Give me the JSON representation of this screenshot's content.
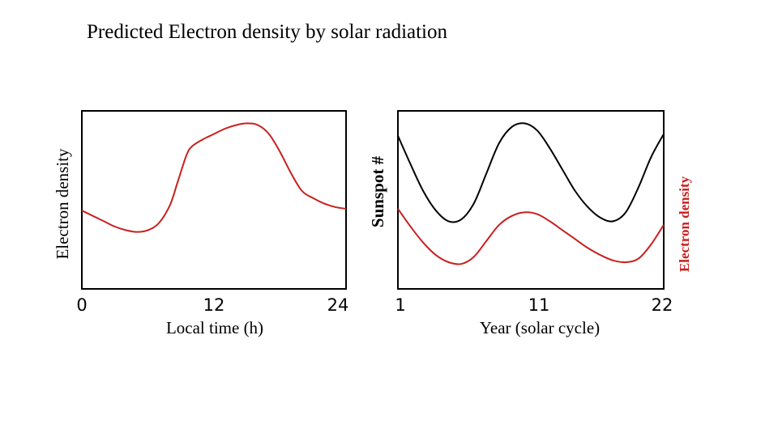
{
  "title": "Predicted Electron density by solar radiation",
  "colors": {
    "electron": "#c8201e",
    "sunspot": "#000000"
  },
  "chart_data": [
    {
      "type": "line",
      "xlabel": "Local time (h)",
      "ylabel": "Electron density",
      "x_ticks": [
        "0",
        "12",
        "24"
      ],
      "xlim": [
        0,
        24
      ],
      "ylim": [
        0,
        1
      ],
      "grid": false,
      "series": [
        {
          "color": "#c8201e",
          "points": [
            [
              0,
              0.44
            ],
            [
              1,
              0.41
            ],
            [
              2,
              0.38
            ],
            [
              3,
              0.35
            ],
            [
              4,
              0.33
            ],
            [
              5,
              0.32
            ],
            [
              6,
              0.33
            ],
            [
              7,
              0.37
            ],
            [
              8,
              0.47
            ],
            [
              8.7,
              0.6
            ],
            [
              9.5,
              0.75
            ],
            [
              10,
              0.8
            ],
            [
              11,
              0.84
            ],
            [
              12,
              0.87
            ],
            [
              13,
              0.9
            ],
            [
              14,
              0.92
            ],
            [
              15,
              0.93
            ],
            [
              16,
              0.92
            ],
            [
              17,
              0.87
            ],
            [
              18,
              0.77
            ],
            [
              19,
              0.65
            ],
            [
              20,
              0.55
            ],
            [
              21,
              0.51
            ],
            [
              22,
              0.48
            ],
            [
              23,
              0.46
            ],
            [
              24,
              0.45
            ]
          ]
        }
      ]
    },
    {
      "type": "line",
      "xlabel": "Year (solar cycle)",
      "ylabel_left": "Sunspot #",
      "ylabel_right": "Electron density",
      "x_ticks": [
        "1",
        "11",
        "22"
      ],
      "xlim": [
        1,
        22
      ],
      "ylim": [
        0,
        1
      ],
      "grid": false,
      "series": [
        {
          "color": "#000000",
          "points": [
            [
              1,
              0.86
            ],
            [
              2,
              0.7
            ],
            [
              3,
              0.55
            ],
            [
              4,
              0.44
            ],
            [
              5,
              0.38
            ],
            [
              6,
              0.39
            ],
            [
              7,
              0.48
            ],
            [
              8,
              0.65
            ],
            [
              9,
              0.82
            ],
            [
              10,
              0.91
            ],
            [
              11,
              0.93
            ],
            [
              12,
              0.89
            ],
            [
              13,
              0.79
            ],
            [
              14,
              0.67
            ],
            [
              15,
              0.55
            ],
            [
              16,
              0.46
            ],
            [
              17,
              0.4
            ],
            [
              18,
              0.38
            ],
            [
              19,
              0.43
            ],
            [
              20,
              0.57
            ],
            [
              21,
              0.74
            ],
            [
              22,
              0.87
            ]
          ]
        },
        {
          "color": "#c8201e",
          "points": [
            [
              1,
              0.45
            ],
            [
              2,
              0.35
            ],
            [
              3,
              0.26
            ],
            [
              4,
              0.19
            ],
            [
              5,
              0.15
            ],
            [
              6,
              0.14
            ],
            [
              7,
              0.18
            ],
            [
              8,
              0.27
            ],
            [
              9,
              0.36
            ],
            [
              10,
              0.41
            ],
            [
              11,
              0.43
            ],
            [
              12,
              0.42
            ],
            [
              13,
              0.38
            ],
            [
              14,
              0.33
            ],
            [
              15,
              0.28
            ],
            [
              16,
              0.23
            ],
            [
              17,
              0.19
            ],
            [
              18,
              0.16
            ],
            [
              19,
              0.15
            ],
            [
              20,
              0.17
            ],
            [
              21,
              0.25
            ],
            [
              22,
              0.36
            ]
          ]
        }
      ]
    }
  ]
}
